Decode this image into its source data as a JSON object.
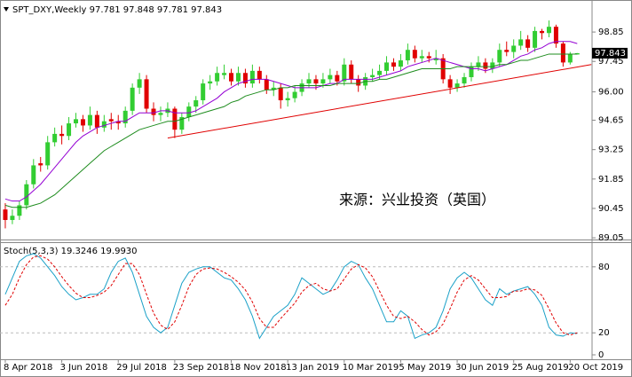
{
  "chart_data": [
    {
      "type": "candlestick",
      "title": "SPT_DXY,Weekly 97.781 97.848 97.781 97.843",
      "annotation": "来源：兴业投资（英国）",
      "last_price": 97.843,
      "ylim": [
        88.97,
        100.29
      ],
      "yticks": [
        98.85,
        97.45,
        {
          "value": 96,
          "label": "96.00"
        },
        94.65,
        93.25,
        91.85,
        90.45,
        89.05
      ],
      "xlim": [
        -0.75,
        83.1
      ],
      "xticks": [
        {
          "value": 0,
          "label": "8 Apr 2018"
        },
        {
          "value": 8,
          "label": "3 Jun 2018"
        },
        {
          "value": 16,
          "label": "29 Jul 2018"
        },
        {
          "value": 24,
          "label": "23 Sep 2018"
        },
        {
          "value": 32,
          "label": "18 Nov 2018"
        },
        {
          "value": 40,
          "label": "13 Jan 2019"
        },
        {
          "value": 48,
          "label": "10 Mar 2019"
        },
        {
          "value": 56,
          "label": "5 May 2019"
        },
        {
          "value": 64,
          "label": "30 Jun 2019"
        },
        {
          "value": 72,
          "label": "25 Aug 2019"
        },
        {
          "value": 80,
          "label": "20 Oct 2019"
        }
      ],
      "up_color": "#32cd32",
      "down_color": "#e00000",
      "candles": [
        [
          90.4,
          90.7,
          89.5,
          89.9
        ],
        [
          89.9,
          90.4,
          89.7,
          90.1
        ],
        [
          90.1,
          90.8,
          89.9,
          90.6
        ],
        [
          90.6,
          91.8,
          90.4,
          91.6
        ],
        [
          91.6,
          92.8,
          91.4,
          92.5
        ],
        [
          92.6,
          92.9,
          92.2,
          92.5
        ],
        [
          92.5,
          93.9,
          92.3,
          93.6
        ],
        [
          93.6,
          94.3,
          93.4,
          94.0
        ],
        [
          94.0,
          94.4,
          93.5,
          93.9
        ],
        [
          93.9,
          94.8,
          93.7,
          94.5
        ],
        [
          94.5,
          95.0,
          94.3,
          94.7
        ],
        [
          94.7,
          94.9,
          94.1,
          94.4
        ],
        [
          94.4,
          95.3,
          94.2,
          94.9
        ],
        [
          94.9,
          95.1,
          94.0,
          94.3
        ],
        [
          94.3,
          94.9,
          94.1,
          94.6
        ],
        [
          94.7,
          95.0,
          94.2,
          94.6
        ],
        [
          94.6,
          94.9,
          94.2,
          94.5
        ],
        [
          94.5,
          95.3,
          94.3,
          95.1
        ],
        [
          95.1,
          96.4,
          94.9,
          96.2
        ],
        [
          96.2,
          96.9,
          95.9,
          96.6
        ],
        [
          96.6,
          96.8,
          95.0,
          95.2
        ],
        [
          95.2,
          95.5,
          94.6,
          94.9
        ],
        [
          94.9,
          95.3,
          94.6,
          95.0
        ],
        [
          95.0,
          95.5,
          94.8,
          95.2
        ],
        [
          95.2,
          95.3,
          93.8,
          94.2
        ],
        [
          94.2,
          95.0,
          94.0,
          94.8
        ],
        [
          94.8,
          95.5,
          94.6,
          95.3
        ],
        [
          95.3,
          95.8,
          95.0,
          95.6
        ],
        [
          95.6,
          96.6,
          95.4,
          96.4
        ],
        [
          96.4,
          96.8,
          96.1,
          96.5
        ],
        [
          96.5,
          97.2,
          96.3,
          96.9
        ],
        [
          96.8,
          97.3,
          96.6,
          96.9
        ],
        [
          96.9,
          97.1,
          96.3,
          96.5
        ],
        [
          96.5,
          97.2,
          96.3,
          96.9
        ],
        [
          96.9,
          97.1,
          96.2,
          96.4
        ],
        [
          96.4,
          97.3,
          96.2,
          97.0
        ],
        [
          97.0,
          97.2,
          96.4,
          96.6
        ],
        [
          96.6,
          96.8,
          95.9,
          96.1
        ],
        [
          96.1,
          96.5,
          95.8,
          96.2
        ],
        [
          96.2,
          96.4,
          95.2,
          95.6
        ],
        [
          95.6,
          96.0,
          95.3,
          95.7
        ],
        [
          95.7,
          96.3,
          95.5,
          96.0
        ],
        [
          96.0,
          96.6,
          95.8,
          96.4
        ],
        [
          96.4,
          96.9,
          96.2,
          96.6
        ],
        [
          96.6,
          96.8,
          96.1,
          96.4
        ],
        [
          96.4,
          96.9,
          96.2,
          96.6
        ],
        [
          96.6,
          97.1,
          96.4,
          96.8
        ],
        [
          96.8,
          97.0,
          96.3,
          96.5
        ],
        [
          96.5,
          97.6,
          96.3,
          97.3
        ],
        [
          97.3,
          97.5,
          96.4,
          96.6
        ],
        [
          96.6,
          96.8,
          96.0,
          96.3
        ],
        [
          96.3,
          96.9,
          96.1,
          96.7
        ],
        [
          96.7,
          97.1,
          96.5,
          96.8
        ],
        [
          96.8,
          97.3,
          96.6,
          97.0
        ],
        [
          97.0,
          97.7,
          96.8,
          97.4
        ],
        [
          97.4,
          97.6,
          97.0,
          97.2
        ],
        [
          97.2,
          97.8,
          97.0,
          97.5
        ],
        [
          97.5,
          98.3,
          97.3,
          98.0
        ],
        [
          98.0,
          98.2,
          97.4,
          97.6
        ],
        [
          97.6,
          98.0,
          97.4,
          97.7
        ],
        [
          97.7,
          97.9,
          97.4,
          97.6
        ],
        [
          97.5,
          98.0,
          97.3,
          97.6
        ],
        [
          97.6,
          97.8,
          96.4,
          96.6
        ],
        [
          96.6,
          96.8,
          95.9,
          96.2
        ],
        [
          96.2,
          96.6,
          96.0,
          96.4
        ],
        [
          96.4,
          96.9,
          96.2,
          96.7
        ],
        [
          96.7,
          97.4,
          96.5,
          97.2
        ],
        [
          97.2,
          97.7,
          97.0,
          97.4
        ],
        [
          97.4,
          97.6,
          96.9,
          97.1
        ],
        [
          97.1,
          97.6,
          96.9,
          97.4
        ],
        [
          97.4,
          98.3,
          97.2,
          98.0
        ],
        [
          98.0,
          98.4,
          97.7,
          97.9
        ],
        [
          97.9,
          98.5,
          97.6,
          98.2
        ],
        [
          98.2,
          98.9,
          98.0,
          98.5
        ],
        [
          98.5,
          98.7,
          97.9,
          98.1
        ],
        [
          98.1,
          99.1,
          97.9,
          98.9
        ],
        [
          98.9,
          99.0,
          98.5,
          98.8
        ],
        [
          98.8,
          99.4,
          98.6,
          99.1
        ],
        [
          99.1,
          99.2,
          98.1,
          98.3
        ],
        [
          98.3,
          98.4,
          97.2,
          97.4
        ],
        [
          97.4,
          97.9,
          97.3,
          97.8
        ],
        [
          97.781,
          97.848,
          97.781,
          97.843
        ]
      ],
      "series": [
        {
          "color": "#9400d3",
          "values": [
            90.9,
            90.8,
            90.8,
            91.0,
            91.3,
            91.6,
            92.0,
            92.4,
            92.8,
            93.2,
            93.6,
            93.9,
            94.1,
            94.3,
            94.4,
            94.5,
            94.6,
            94.6,
            94.8,
            95.0,
            95.0,
            95.0,
            95.1,
            95.1,
            95.0,
            95.0,
            95.0,
            95.1,
            95.3,
            95.5,
            95.7,
            96.0,
            96.2,
            96.4,
            96.5,
            96.6,
            96.6,
            96.6,
            96.5,
            96.4,
            96.3,
            96.2,
            96.2,
            96.2,
            96.2,
            96.3,
            96.4,
            96.4,
            96.6,
            96.6,
            96.6,
            96.6,
            96.6,
            96.7,
            96.8,
            96.9,
            97.0,
            97.2,
            97.3,
            97.4,
            97.5,
            97.6,
            97.5,
            97.4,
            97.3,
            97.2,
            97.1,
            97.1,
            97.0,
            97.1,
            97.2,
            97.3,
            97.5,
            97.7,
            97.8,
            98.0,
            98.1,
            98.3,
            98.4,
            98.4,
            98.4,
            98.3
          ]
        },
        {
          "color": "#1e8c1e",
          "values": [
            90.6,
            90.5,
            90.5,
            90.5,
            90.6,
            90.7,
            90.9,
            91.1,
            91.4,
            91.7,
            92.0,
            92.3,
            92.6,
            92.9,
            93.2,
            93.4,
            93.6,
            93.8,
            94.0,
            94.2,
            94.3,
            94.4,
            94.5,
            94.6,
            94.6,
            94.7,
            94.8,
            94.9,
            95.0,
            95.1,
            95.2,
            95.3,
            95.5,
            95.6,
            95.8,
            95.9,
            96.0,
            96.1,
            96.1,
            96.2,
            96.2,
            96.3,
            96.3,
            96.3,
            96.3,
            96.3,
            96.3,
            96.4,
            96.4,
            96.4,
            96.4,
            96.5,
            96.5,
            96.6,
            96.6,
            96.7,
            96.8,
            96.9,
            97.0,
            97.1,
            97.1,
            97.1,
            97.1,
            97.1,
            97.2,
            97.2,
            97.2,
            97.2,
            97.2,
            97.2,
            97.3,
            97.3,
            97.4,
            97.5,
            97.5,
            97.6,
            97.7,
            97.8,
            97.8,
            97.8,
            97.8,
            97.8
          ]
        }
      ],
      "trendline": {
        "color": "#e00000",
        "x": [
          23,
          83
        ],
        "y": [
          93.8,
          97.3
        ]
      }
    },
    {
      "type": "line",
      "title": "Stoch(5,3,3) 19.3246 19.9930",
      "ylim": [
        0,
        100
      ],
      "yticks": [
        80,
        20,
        0
      ],
      "levels": [
        80,
        20
      ],
      "series": [
        {
          "color": "#1ba1c8",
          "values": [
            55,
            70,
            85,
            90,
            92,
            88,
            80,
            72,
            62,
            55,
            50,
            52,
            55,
            55,
            60,
            75,
            85,
            88,
            75,
            55,
            35,
            25,
            20,
            25,
            45,
            65,
            75,
            78,
            80,
            80,
            75,
            70,
            68,
            60,
            50,
            35,
            15,
            25,
            35,
            40,
            45,
            55,
            70,
            65,
            60,
            55,
            58,
            68,
            80,
            85,
            82,
            70,
            60,
            45,
            30,
            30,
            40,
            35,
            15,
            18,
            20,
            25,
            40,
            60,
            70,
            75,
            70,
            60,
            50,
            45,
            60,
            55,
            58,
            60,
            62,
            55,
            45,
            25,
            18,
            17,
            20,
            19.3246
          ]
        },
        {
          "color": "#e00000",
          "dash": true,
          "values": [
            45,
            55,
            70,
            82,
            89,
            90,
            87,
            80,
            71,
            63,
            56,
            52,
            52,
            54,
            57,
            63,
            73,
            83,
            83,
            73,
            55,
            38,
            27,
            23,
            30,
            45,
            62,
            73,
            78,
            79,
            78,
            75,
            71,
            66,
            59,
            48,
            33,
            25,
            25,
            33,
            40,
            47,
            57,
            63,
            65,
            60,
            58,
            60,
            69,
            78,
            82,
            79,
            71,
            58,
            45,
            35,
            33,
            35,
            30,
            23,
            18,
            21,
            28,
            42,
            57,
            68,
            72,
            68,
            60,
            52,
            52,
            53,
            58,
            58,
            60,
            59,
            54,
            42,
            29,
            20,
            18,
            19.993
          ]
        }
      ]
    }
  ]
}
